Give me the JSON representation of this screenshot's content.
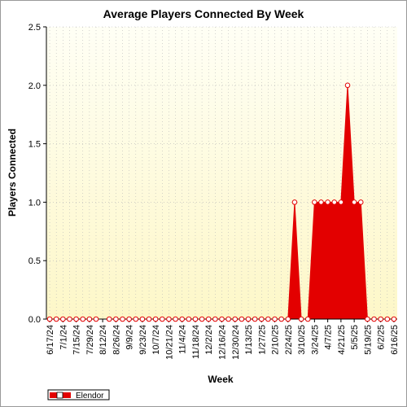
{
  "chart_data": {
    "type": "area",
    "title": "Average Players Connected By Week",
    "xlabel": "Week",
    "ylabel": "Players Connected",
    "ylim": [
      0,
      2.5
    ],
    "yticks": [
      "0.0",
      "0.5",
      "1.0",
      "1.5",
      "2.0",
      "2.5"
    ],
    "grid": true,
    "legend_position": "bottom-left",
    "background_gradient": [
      "#fffff5",
      "#fdf7c8"
    ],
    "x": [
      "6/17/24",
      "6/24/24",
      "7/1/24",
      "7/8/24",
      "7/15/24",
      "7/22/24",
      "7/29/24",
      "8/5/24",
      "8/12/24",
      "8/19/24",
      "8/26/24",
      "9/2/24",
      "9/9/24",
      "9/16/24",
      "9/23/24",
      "9/30/24",
      "10/7/24",
      "10/14/24",
      "10/21/24",
      "10/28/24",
      "11/4/24",
      "11/11/24",
      "11/18/24",
      "11/25/24",
      "12/2/24",
      "12/9/24",
      "12/16/24",
      "12/23/24",
      "12/30/24",
      "1/6/25",
      "1/13/25",
      "1/20/25",
      "1/27/25",
      "2/3/25",
      "2/10/25",
      "2/17/25",
      "2/24/25",
      "3/3/25",
      "3/10/25",
      "3/17/25",
      "3/24/25",
      "3/31/25",
      "4/7/25",
      "4/14/25",
      "4/21/25",
      "4/28/25",
      "5/5/25",
      "5/12/25",
      "5/19/25",
      "5/26/25",
      "6/2/25",
      "6/9/25",
      "6/16/25"
    ],
    "xticks_shown": [
      "6/17/24",
      "7/1/24",
      "7/15/24",
      "7/29/24",
      "8/12/24",
      "8/26/24",
      "9/9/24",
      "9/23/24",
      "10/7/24",
      "10/21/24",
      "11/4/24",
      "11/18/24",
      "12/2/24",
      "12/16/24",
      "12/30/24",
      "1/13/25",
      "1/27/25",
      "2/10/25",
      "2/24/25",
      "3/10/25",
      "3/24/25",
      "4/7/25",
      "4/21/25",
      "5/5/25",
      "5/19/25",
      "6/2/25",
      "6/16/25"
    ],
    "series": [
      {
        "name": "Elendor",
        "color": "#e30000",
        "values": [
          0,
          0,
          0,
          0,
          0,
          0,
          0,
          0,
          null,
          0,
          0,
          0,
          0,
          0,
          0,
          0,
          0,
          0,
          0,
          0,
          0,
          0,
          0,
          0,
          0,
          0,
          0,
          0,
          0,
          0,
          0,
          0,
          0,
          0,
          0,
          0,
          0,
          1,
          0,
          0,
          1,
          1,
          1,
          1,
          1,
          2,
          1,
          1,
          0,
          0,
          0,
          0,
          0
        ]
      }
    ]
  }
}
